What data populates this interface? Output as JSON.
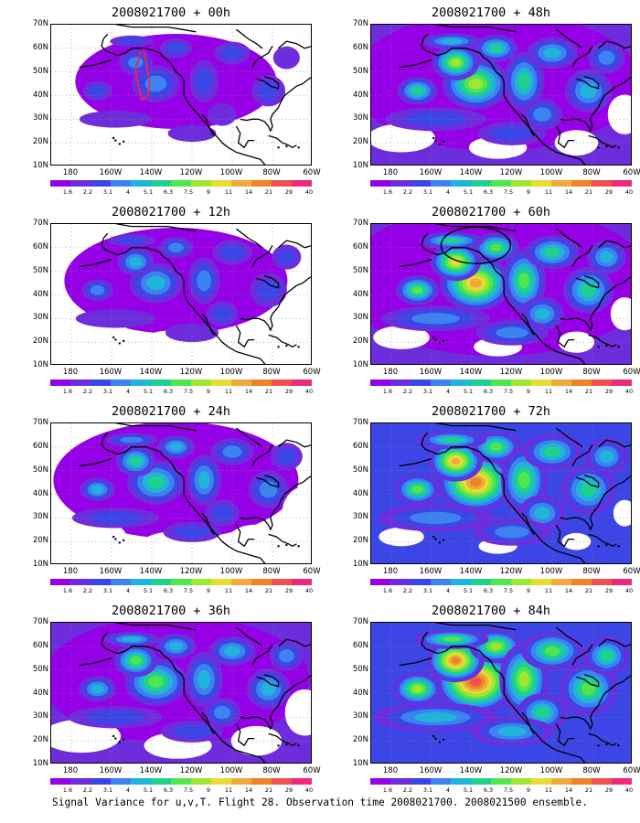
{
  "caption": "Signal Variance for u,v,T. Flight 28. Observation time 2008021700. 2008021500 ensemble.",
  "lat_labels": [
    "70N",
    "60N",
    "50N",
    "40N",
    "30N",
    "20N",
    "10N"
  ],
  "lon_labels": [
    "180",
    "160W",
    "140W",
    "120W",
    "100W",
    "80W",
    "60W"
  ],
  "colorbar": {
    "colors": [
      "#9600e6",
      "#6e2ddc",
      "#3c46e6",
      "#3c82f0",
      "#1eb4dc",
      "#1ed28c",
      "#50e650",
      "#a0e632",
      "#e6dc32",
      "#f0aa3c",
      "#f08228",
      "#f05050",
      "#f0287c"
    ],
    "labels": [
      "1.6",
      "2.2",
      "3.1",
      "4",
      "5.1",
      "6.3",
      "7.5",
      "9",
      "11",
      "14",
      "21",
      "29",
      "40"
    ]
  },
  "panels": [
    {
      "title": "2008021700 + 00h",
      "level": 0,
      "flight_track": true
    },
    {
      "title": "2008021700 + 48h",
      "level": 4
    },
    {
      "title": "2008021700 + 12h",
      "level": 1
    },
    {
      "title": "2008021700 + 60h",
      "level": 5,
      "circle": true
    },
    {
      "title": "2008021700 + 24h",
      "level": 2
    },
    {
      "title": "2008021700 + 72h",
      "level": 6
    },
    {
      "title": "2008021700 + 36h",
      "level": 3
    },
    {
      "title": "2008021700 + 84h",
      "level": 7
    }
  ]
}
